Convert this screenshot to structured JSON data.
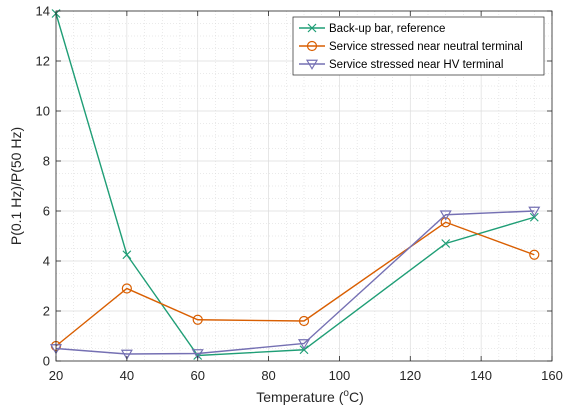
{
  "chart_data": {
    "type": "line",
    "title": "",
    "xlabel": {
      "main": "Temperature (",
      "sup_base": "o",
      "unit": "C)"
    },
    "ylabel": "P(0.1 Hz)/P(50 Hz)",
    "xlim": [
      20,
      160
    ],
    "ylim": [
      0,
      14
    ],
    "xticks": [
      20,
      40,
      60,
      80,
      100,
      120,
      140,
      160
    ],
    "yticks": [
      0,
      2,
      4,
      6,
      8,
      10,
      12,
      14
    ],
    "grid": true,
    "legend_position": "top-right",
    "x": [
      20,
      40,
      60,
      90,
      130,
      155
    ],
    "series": [
      {
        "name": "Back-up bar, reference",
        "color": "#1f9e76",
        "marker": "x",
        "values": [
          13.9,
          4.25,
          0.22,
          0.45,
          4.7,
          5.75
        ]
      },
      {
        "name": "Service stressed near neutral terminal",
        "color": "#d95f02",
        "marker": "circle",
        "values": [
          0.6,
          2.9,
          1.65,
          1.6,
          5.55,
          4.25
        ]
      },
      {
        "name": "Service stressed near HV terminal",
        "color": "#7570b3",
        "marker": "triangle-down",
        "values": [
          0.5,
          0.28,
          0.3,
          0.7,
          5.85,
          6.0
        ]
      }
    ]
  }
}
